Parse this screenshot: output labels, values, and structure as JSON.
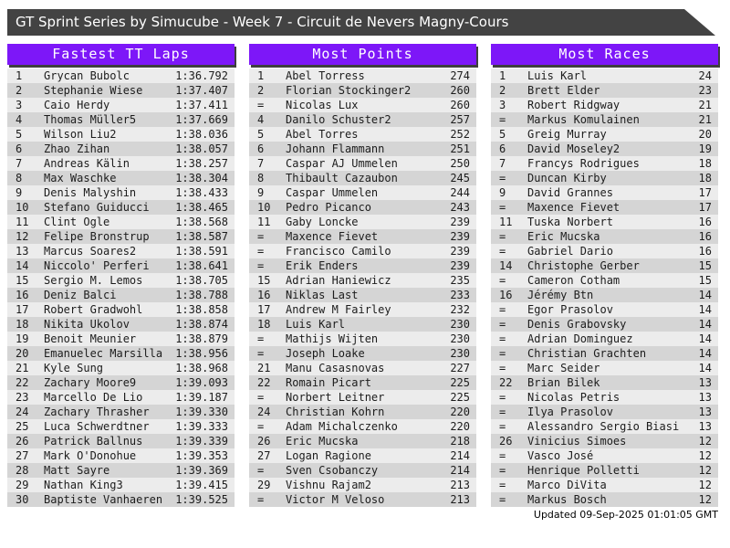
{
  "title": "GT Sprint Series by Simucube - Week 7 - Circuit de Nevers Magny-Cours",
  "footer": "Updated 09-Sep-2025 01:01:05 GMT",
  "colors": {
    "title_bar_bg": "#434343",
    "header_bg": "#7d17f8",
    "header_shadow": "#3e3e3e",
    "row_odd_bg": "#ececec",
    "row_even_bg": "#d5d5d5",
    "text": "#1c1c1c"
  },
  "boards": [
    {
      "header": "Fastest TT Laps",
      "rows": [
        [
          "1",
          "Grycan Bubolc",
          "1:36.792"
        ],
        [
          "2",
          "Stephanie Wiese",
          "1:37.407"
        ],
        [
          "3",
          "Caio Herdy",
          "1:37.411"
        ],
        [
          "4",
          "Thomas Müller5",
          "1:37.669"
        ],
        [
          "5",
          "Wilson Liu2",
          "1:38.036"
        ],
        [
          "6",
          "Zhao Zihan",
          "1:38.057"
        ],
        [
          "7",
          "Andreas Kälin",
          "1:38.257"
        ],
        [
          "8",
          "Max Waschke",
          "1:38.304"
        ],
        [
          "9",
          "Denis Malyshin",
          "1:38.433"
        ],
        [
          "10",
          "Stefano Guiducci",
          "1:38.465"
        ],
        [
          "11",
          "Clint Ogle",
          "1:38.568"
        ],
        [
          "12",
          "Felipe Bronstrup",
          "1:38.587"
        ],
        [
          "13",
          "Marcus Soares2",
          "1:38.591"
        ],
        [
          "14",
          "Niccolo' Perferi",
          "1:38.641"
        ],
        [
          "15",
          "Sergio M. Lemos",
          "1:38.705"
        ],
        [
          "16",
          "Deniz Balci",
          "1:38.788"
        ],
        [
          "17",
          "Robert Gradwohl",
          "1:38.858"
        ],
        [
          "18",
          "Nikita Ukolov",
          "1:38.874"
        ],
        [
          "19",
          "Benoit Meunier",
          "1:38.879"
        ],
        [
          "20",
          "Emanuelec Marsilla",
          "1:38.956"
        ],
        [
          "21",
          "Kyle Sung",
          "1:38.968"
        ],
        [
          "22",
          "Zachary Moore9",
          "1:39.093"
        ],
        [
          "23",
          "Marcello De Lio",
          "1:39.187"
        ],
        [
          "24",
          "Zachary Thrasher",
          "1:39.330"
        ],
        [
          "25",
          "Luca Schwerdtner",
          "1:39.333"
        ],
        [
          "26",
          "Patrick Ballnus",
          "1:39.339"
        ],
        [
          "27",
          "Mark O'Donohue",
          "1:39.353"
        ],
        [
          "28",
          "Matt Sayre",
          "1:39.369"
        ],
        [
          "29",
          "Nathan King3",
          "1:39.415"
        ],
        [
          "30",
          "Baptiste Vanhaeren",
          "1:39.525"
        ]
      ]
    },
    {
      "header": "Most Points",
      "rows": [
        [
          "1",
          "Abel Torress",
          "274"
        ],
        [
          "2",
          "Florian Stockinger2",
          "260"
        ],
        [
          "=",
          "Nicolas Lux",
          "260"
        ],
        [
          "4",
          "Danilo Schuster2",
          "257"
        ],
        [
          "5",
          "Abel Torres",
          "252"
        ],
        [
          "6",
          "Johann Flammann",
          "251"
        ],
        [
          "7",
          "Caspar AJ Ummelen",
          "250"
        ],
        [
          "8",
          "Thibault Cazaubon",
          "245"
        ],
        [
          "9",
          "Caspar Ummelen",
          "244"
        ],
        [
          "10",
          "Pedro Picanco",
          "243"
        ],
        [
          "11",
          "Gaby Loncke",
          "239"
        ],
        [
          "=",
          "Maxence Fievet",
          "239"
        ],
        [
          "=",
          "Francisco Camilo",
          "239"
        ],
        [
          "=",
          "Erik Enders",
          "239"
        ],
        [
          "15",
          "Adrian Haniewicz",
          "235"
        ],
        [
          "16",
          "Niklas Last",
          "233"
        ],
        [
          "17",
          "Andrew M Fairley",
          "232"
        ],
        [
          "18",
          "Luis Karl",
          "230"
        ],
        [
          "=",
          "Mathijs Wijten",
          "230"
        ],
        [
          "=",
          "Joseph Loake",
          "230"
        ],
        [
          "21",
          "Manu Casasnovas",
          "227"
        ],
        [
          "22",
          "Romain Picart",
          "225"
        ],
        [
          "=",
          "Norbert Leitner",
          "225"
        ],
        [
          "24",
          "Christian Kohrn",
          "220"
        ],
        [
          "=",
          "Adam Michalczenko",
          "220"
        ],
        [
          "26",
          "Eric Mucska",
          "218"
        ],
        [
          "27",
          "Logan Ragione",
          "214"
        ],
        [
          "=",
          "Sven Csobanczy",
          "214"
        ],
        [
          "29",
          "Vishnu Rajam2",
          "213"
        ],
        [
          "=",
          "Victor M Veloso",
          "213"
        ]
      ]
    },
    {
      "header": "Most Races",
      "rows": [
        [
          "1",
          "Luis Karl",
          "24"
        ],
        [
          "2",
          "Brett Elder",
          "23"
        ],
        [
          "3",
          "Robert Ridgway",
          "21"
        ],
        [
          "=",
          "Markus Komulainen",
          "21"
        ],
        [
          "5",
          "Greig Murray",
          "20"
        ],
        [
          "6",
          "David Moseley2",
          "19"
        ],
        [
          "7",
          "Francys Rodrigues",
          "18"
        ],
        [
          "=",
          "Duncan Kirby",
          "18"
        ],
        [
          "9",
          "David Grannes",
          "17"
        ],
        [
          "=",
          "Maxence Fievet",
          "17"
        ],
        [
          "11",
          "Tuska Norbert",
          "16"
        ],
        [
          "=",
          "Eric Mucska",
          "16"
        ],
        [
          "=",
          "Gabriel Dario",
          "16"
        ],
        [
          "14",
          "Christophe Gerber",
          "15"
        ],
        [
          "=",
          "Cameron Cotham",
          "15"
        ],
        [
          "16",
          "Jérémy Btn",
          "14"
        ],
        [
          "=",
          "Egor Prasolov",
          "14"
        ],
        [
          "=",
          "Denis Grabovsky",
          "14"
        ],
        [
          "=",
          "Adrian Dominguez",
          "14"
        ],
        [
          "=",
          "Christian Grachten",
          "14"
        ],
        [
          "=",
          "Marc Seider",
          "14"
        ],
        [
          "22",
          "Brian Bilek",
          "13"
        ],
        [
          "=",
          "Nicolas Petris",
          "13"
        ],
        [
          "=",
          "Ilya Prasolov",
          "13"
        ],
        [
          "=",
          "Alessandro Sergio Biasi",
          "13"
        ],
        [
          "26",
          "Vinicius Simoes",
          "12"
        ],
        [
          "=",
          "Vasco José",
          "12"
        ],
        [
          "=",
          "Henrique Polletti",
          "12"
        ],
        [
          "=",
          "Marco DiVita",
          "12"
        ],
        [
          "=",
          "Markus Bosch",
          "12"
        ]
      ]
    }
  ]
}
